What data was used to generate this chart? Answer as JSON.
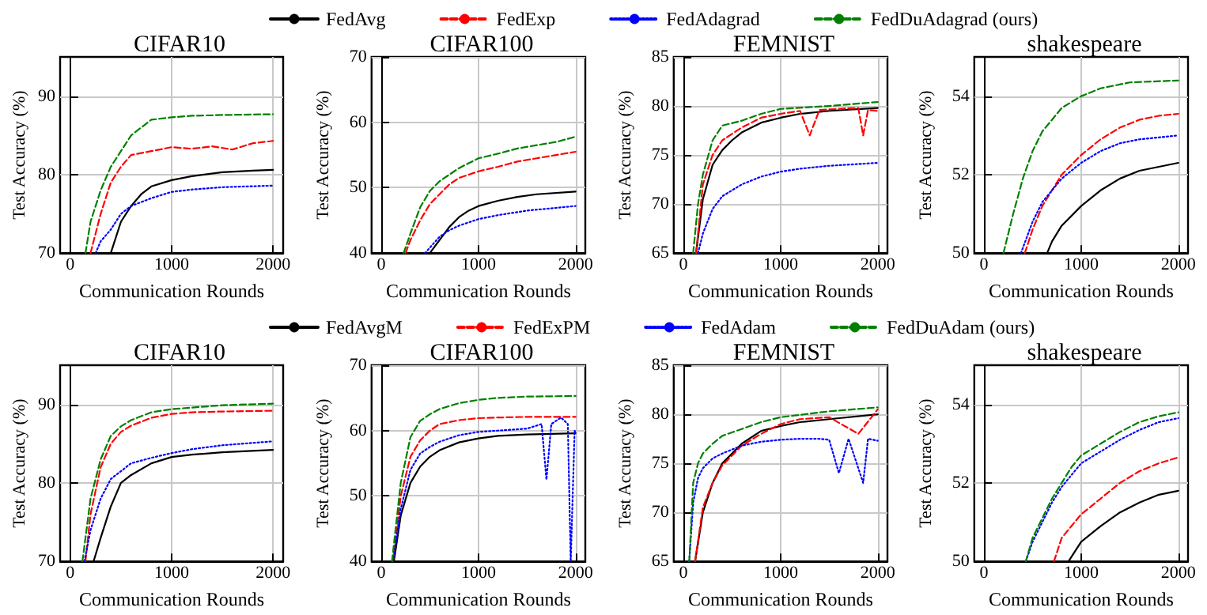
{
  "chart_data": [
    {
      "type": "line",
      "title": "CIFAR10",
      "xlabel": "Communication Rounds",
      "ylabel": "Test Accuracy (%)",
      "xlim": [
        -100,
        2100
      ],
      "ylim": [
        70,
        95
      ],
      "xticks": [
        0,
        1000,
        2000
      ],
      "yticks": [
        70,
        80,
        90
      ],
      "grid": true,
      "legend": "top",
      "marker": "none",
      "series": [
        {
          "name": "FedAvg",
          "color": "#000000",
          "line_style": "solid",
          "x": [
            400,
            500,
            600,
            700,
            800,
            1000,
            1200,
            1500,
            1800,
            2000
          ],
          "values": [
            70,
            74,
            76,
            77.5,
            78.5,
            79.3,
            79.8,
            80.3,
            80.5,
            80.6
          ]
        },
        {
          "name": "FedExp",
          "color": "#ff0000",
          "line_style": "dashed",
          "x": [
            200,
            300,
            400,
            500,
            600,
            800,
            1000,
            1200,
            1400,
            1600,
            1800,
            2000
          ],
          "values": [
            70,
            75,
            79,
            81,
            82.5,
            83,
            83.5,
            83.3,
            83.6,
            83.2,
            84,
            84.3
          ]
        },
        {
          "name": "FedAdagrad",
          "color": "#0000ff",
          "line_style": "dotted",
          "x": [
            250,
            300,
            400,
            500,
            600,
            800,
            1000,
            1200,
            1500,
            2000
          ],
          "values": [
            70,
            71.5,
            73,
            75,
            76,
            77,
            77.8,
            78.1,
            78.4,
            78.6
          ]
        },
        {
          "name": "FedDuAdagrad (ours)",
          "color": "#008000",
          "line_style": "dashed",
          "x": [
            150,
            200,
            300,
            400,
            500,
            600,
            700,
            800,
            1000,
            1200,
            1500,
            2000
          ],
          "values": [
            70,
            74,
            78,
            81,
            83,
            85,
            86,
            87,
            87.3,
            87.5,
            87.6,
            87.7
          ]
        }
      ]
    },
    {
      "type": "line",
      "title": "CIFAR100",
      "xlabel": "Communication Rounds",
      "ylabel": "Test Accuracy (%)",
      "xlim": [
        -100,
        2100
      ],
      "ylim": [
        40,
        70
      ],
      "xticks": [
        0,
        1000,
        2000
      ],
      "yticks": [
        40,
        50,
        60,
        70
      ],
      "grid": true,
      "marker": "none",
      "series": [
        {
          "color": "#000000",
          "line_style": "solid",
          "x": [
            500,
            600,
            700,
            800,
            900,
            1000,
            1200,
            1400,
            1600,
            2000
          ],
          "values": [
            40,
            42,
            44,
            45.5,
            46.5,
            47.2,
            48,
            48.6,
            49,
            49.4
          ]
        },
        {
          "color": "#ff0000",
          "line_style": "dashed",
          "x": [
            250,
            300,
            400,
            500,
            600,
            700,
            800,
            1000,
            1200,
            1400,
            1600,
            1800,
            2000
          ],
          "values": [
            40,
            42,
            45,
            47.5,
            49,
            50.5,
            51.5,
            52.5,
            53.2,
            54,
            54.5,
            55,
            55.5
          ]
        },
        {
          "color": "#0000ff",
          "line_style": "dotted",
          "x": [
            450,
            600,
            700,
            800,
            1000,
            1200,
            1500,
            2000
          ],
          "values": [
            40,
            42.5,
            43.5,
            44.2,
            45.2,
            45.8,
            46.5,
            47.2
          ]
        },
        {
          "color": "#008000",
          "line_style": "dashed",
          "x": [
            230,
            300,
            400,
            500,
            600,
            800,
            1000,
            1200,
            1400,
            1600,
            1800,
            2000
          ],
          "values": [
            40,
            43,
            47,
            49.5,
            51,
            53,
            54.5,
            55.2,
            56,
            56.5,
            57,
            57.8
          ]
        }
      ]
    },
    {
      "type": "line",
      "title": "FEMNIST",
      "xlabel": "Communication Rounds",
      "ylabel": "Test Accuracy (%)",
      "xlim": [
        -100,
        2100
      ],
      "ylim": [
        65,
        85
      ],
      "xticks": [
        0,
        1000,
        2000
      ],
      "yticks": [
        65,
        70,
        75,
        80,
        85
      ],
      "grid": true,
      "marker": "none",
      "series": [
        {
          "color": "#000000",
          "line_style": "solid",
          "x": [
            130,
            200,
            300,
            400,
            500,
            600,
            800,
            1000,
            1200,
            1500,
            2000
          ],
          "values": [
            65,
            70.5,
            74,
            75.5,
            76.5,
            77.3,
            78.3,
            78.8,
            79.2,
            79.5,
            79.8
          ]
        },
        {
          "color": "#ff0000",
          "line_style": "dashed",
          "x": [
            130,
            200,
            300,
            400,
            600,
            800,
            1000,
            1200,
            1300,
            1400,
            1600,
            1800,
            1850,
            1900,
            2000
          ],
          "values": [
            65,
            72,
            75,
            76.5,
            77.8,
            78.8,
            79.2,
            79.5,
            77,
            79.6,
            79.7,
            79.8,
            77,
            79.6,
            79.5
          ]
        },
        {
          "color": "#0000ff",
          "line_style": "dotted",
          "x": [
            150,
            200,
            300,
            400,
            600,
            800,
            1000,
            1200,
            1500,
            2000
          ],
          "values": [
            65,
            67,
            69.5,
            70.8,
            72,
            72.8,
            73.3,
            73.6,
            73.9,
            74.2
          ]
        },
        {
          "color": "#008000",
          "line_style": "dashed",
          "x": [
            100,
            150,
            200,
            300,
            400,
            600,
            800,
            1000,
            1500,
            2000
          ],
          "values": [
            65,
            70,
            73,
            76.5,
            78,
            78.5,
            79.2,
            79.7,
            80,
            80.4
          ]
        }
      ]
    },
    {
      "type": "line",
      "title": "shakespeare",
      "xlabel": "Communication Rounds",
      "ylabel": "Test Accuracy (%)",
      "xlim": [
        -100,
        2100
      ],
      "ylim": [
        50,
        55
      ],
      "xticks": [
        0,
        1000,
        2000
      ],
      "yticks": [
        50,
        52,
        54
      ],
      "grid": true,
      "marker": "none",
      "series": [
        {
          "color": "#000000",
          "line_style": "solid",
          "x": [
            650,
            700,
            800,
            1000,
            1200,
            1400,
            1600,
            1800,
            2000
          ],
          "values": [
            50,
            50.3,
            50.7,
            51.2,
            51.6,
            51.9,
            52.1,
            52.2,
            52.3
          ]
        },
        {
          "color": "#ff0000",
          "line_style": "dashed",
          "x": [
            420,
            500,
            600,
            700,
            800,
            1000,
            1200,
            1400,
            1600,
            1800,
            2000
          ],
          "values": [
            50,
            50.6,
            51.2,
            51.6,
            52,
            52.5,
            52.9,
            53.2,
            53.4,
            53.5,
            53.55
          ]
        },
        {
          "color": "#0000ff",
          "line_style": "dotted",
          "x": [
            380,
            500,
            600,
            800,
            1000,
            1200,
            1400,
            1600,
            2000
          ],
          "values": [
            50,
            50.8,
            51.3,
            51.9,
            52.3,
            52.6,
            52.8,
            52.9,
            53
          ]
        },
        {
          "color": "#008000",
          "line_style": "dashed",
          "x": [
            200,
            300,
            400,
            500,
            600,
            800,
            1000,
            1200,
            1500,
            2000
          ],
          "values": [
            50,
            51,
            51.9,
            52.6,
            53.1,
            53.7,
            54,
            54.2,
            54.35,
            54.4
          ]
        }
      ]
    },
    {
      "type": "line",
      "title": "CIFAR10",
      "xlabel": "Communication Rounds",
      "ylabel": "Test Accuracy (%)",
      "xlim": [
        -100,
        2100
      ],
      "ylim": [
        70,
        95
      ],
      "xticks": [
        0,
        1000,
        2000
      ],
      "yticks": [
        70,
        80,
        90
      ],
      "grid": true,
      "legend": "top",
      "marker": "none",
      "series": [
        {
          "name": "FedAvgM",
          "color": "#000000",
          "line_style": "solid",
          "x": [
            230,
            300,
            400,
            500,
            600,
            800,
            1000,
            1200,
            1500,
            2000
          ],
          "values": [
            70,
            73,
            77,
            80,
            81,
            82.5,
            83.3,
            83.6,
            83.9,
            84.2
          ]
        },
        {
          "name": "FedExPM",
          "color": "#ff0000",
          "line_style": "dashed",
          "x": [
            150,
            200,
            300,
            400,
            500,
            600,
            800,
            1000,
            1200,
            1500,
            2000
          ],
          "values": [
            70,
            76,
            82,
            85,
            86.5,
            87.3,
            88.3,
            88.8,
            89,
            89.1,
            89.2
          ]
        },
        {
          "name": "FedAdam",
          "color": "#0000ff",
          "line_style": "dotted",
          "x": [
            140,
            200,
            300,
            400,
            500,
            600,
            800,
            1000,
            1200,
            1500,
            2000
          ],
          "values": [
            70,
            74,
            78,
            80.5,
            81.5,
            82.5,
            83.2,
            83.8,
            84.3,
            84.8,
            85.3
          ]
        },
        {
          "name": "FedDuAdam (ours)",
          "color": "#008000",
          "line_style": "dashed",
          "x": [
            120,
            200,
            300,
            400,
            500,
            600,
            800,
            1000,
            1200,
            1500,
            2000
          ],
          "values": [
            70,
            78,
            83,
            86,
            87.2,
            88,
            89,
            89.4,
            89.6,
            89.9,
            90.1
          ]
        }
      ]
    },
    {
      "type": "line",
      "title": "CIFAR100",
      "xlabel": "Communication Rounds",
      "ylabel": "Test Accuracy (%)",
      "xlim": [
        -100,
        2100
      ],
      "ylim": [
        40,
        70
      ],
      "xticks": [
        0,
        1000,
        2000
      ],
      "yticks": [
        40,
        50,
        60,
        70
      ],
      "grid": true,
      "marker": "none",
      "series": [
        {
          "color": "#000000",
          "line_style": "solid",
          "x": [
            130,
            200,
            300,
            400,
            500,
            600,
            800,
            1000,
            1200,
            1500,
            2000
          ],
          "values": [
            40,
            47,
            52,
            54.5,
            56,
            57,
            58.2,
            58.8,
            59.2,
            59.4,
            59.6
          ]
        },
        {
          "color": "#ff0000",
          "line_style": "dashed",
          "x": [
            120,
            200,
            300,
            400,
            500,
            600,
            800,
            1000,
            1200,
            1500,
            2000
          ],
          "values": [
            40,
            50,
            56,
            58.5,
            60,
            61,
            61.6,
            61.9,
            62,
            62.1,
            62.1
          ]
        },
        {
          "color": "#0000ff",
          "line_style": "dotted",
          "x": [
            120,
            200,
            300,
            400,
            500,
            600,
            800,
            1000,
            1200,
            1500,
            1650,
            1700,
            1750,
            1850,
            1920,
            1950,
            1990,
            2000
          ],
          "values": [
            40,
            48,
            54,
            56.5,
            57.5,
            58.3,
            59.3,
            59.8,
            60,
            60.3,
            61,
            52.5,
            61,
            62,
            61,
            40,
            60,
            59.5
          ]
        },
        {
          "color": "#008000",
          "line_style": "dashed",
          "x": [
            110,
            200,
            300,
            400,
            500,
            600,
            800,
            1000,
            1200,
            1500,
            2000
          ],
          "values": [
            40,
            52,
            59,
            61.5,
            62.5,
            63.3,
            64.2,
            64.7,
            65,
            65.2,
            65.3
          ]
        }
      ]
    },
    {
      "type": "line",
      "title": "FEMNIST",
      "xlabel": "Communication Rounds",
      "ylabel": "Test Accuracy (%)",
      "xlim": [
        -100,
        2100
      ],
      "ylim": [
        65,
        85
      ],
      "xticks": [
        0,
        1000,
        2000
      ],
      "yticks": [
        65,
        70,
        75,
        80,
        85
      ],
      "grid": true,
      "marker": "none",
      "series": [
        {
          "color": "#000000",
          "line_style": "solid",
          "x": [
            120,
            200,
            300,
            400,
            500,
            600,
            800,
            1000,
            1200,
            1500,
            2000
          ],
          "values": [
            65,
            70,
            73,
            75,
            76,
            77,
            78.3,
            78.8,
            79.2,
            79.5,
            80
          ]
        },
        {
          "color": "#ff0000",
          "line_style": "dashed",
          "x": [
            120,
            200,
            300,
            400,
            500,
            600,
            800,
            1000,
            1200,
            1500,
            1800,
            2000
          ],
          "values": [
            65,
            70.5,
            73,
            74.8,
            75.8,
            76.8,
            78,
            79,
            79.5,
            79.7,
            78,
            80.5
          ]
        },
        {
          "color": "#0000ff",
          "line_style": "dotted",
          "x": [
            60,
            100,
            150,
            200,
            300,
            400,
            600,
            800,
            1000,
            1200,
            1400,
            1500,
            1600,
            1700,
            1850,
            1900,
            2000
          ],
          "values": [
            65,
            71,
            73.5,
            74.5,
            75.5,
            76,
            76.8,
            77.2,
            77.4,
            77.5,
            77.5,
            77.4,
            74,
            77.5,
            73,
            77.5,
            77.3
          ]
        },
        {
          "color": "#008000",
          "line_style": "dashed",
          "x": [
            60,
            100,
            150,
            200,
            300,
            400,
            600,
            800,
            1000,
            1500,
            2000
          ],
          "values": [
            65,
            73,
            75,
            76,
            77,
            77.8,
            78.5,
            79.2,
            79.7,
            80.3,
            80.7
          ]
        }
      ]
    },
    {
      "type": "line",
      "title": "shakespeare",
      "xlabel": "Communication Rounds",
      "ylabel": "Test Accuracy (%)",
      "xlim": [
        -100,
        2100
      ],
      "ylim": [
        50,
        55
      ],
      "xticks": [
        0,
        1000,
        2000
      ],
      "yticks": [
        50,
        52,
        54
      ],
      "grid": true,
      "marker": "none",
      "series": [
        {
          "color": "#000000",
          "line_style": "solid",
          "x": [
            870,
            1000,
            1200,
            1400,
            1600,
            1800,
            2000
          ],
          "values": [
            50,
            50.5,
            50.9,
            51.25,
            51.5,
            51.7,
            51.8
          ]
        },
        {
          "color": "#ff0000",
          "line_style": "dashed",
          "x": [
            720,
            800,
            900,
            1000,
            1200,
            1400,
            1600,
            1800,
            2000
          ],
          "values": [
            50,
            50.6,
            50.9,
            51.2,
            51.6,
            52,
            52.3,
            52.5,
            52.65
          ]
        },
        {
          "color": "#0000ff",
          "line_style": "dotted",
          "x": [
            430,
            500,
            600,
            700,
            800,
            900,
            1000,
            1200,
            1400,
            1600,
            1800,
            2000
          ],
          "values": [
            50,
            50.5,
            51,
            51.5,
            51.9,
            52.2,
            52.5,
            52.8,
            53.1,
            53.35,
            53.55,
            53.65
          ]
        },
        {
          "color": "#008000",
          "line_style": "dashed",
          "x": [
            430,
            500,
            600,
            700,
            800,
            900,
            1000,
            1200,
            1400,
            1600,
            1800,
            2000
          ],
          "values": [
            50,
            50.6,
            51.1,
            51.6,
            52,
            52.4,
            52.7,
            53,
            53.3,
            53.55,
            53.7,
            53.8
          ]
        }
      ]
    }
  ]
}
